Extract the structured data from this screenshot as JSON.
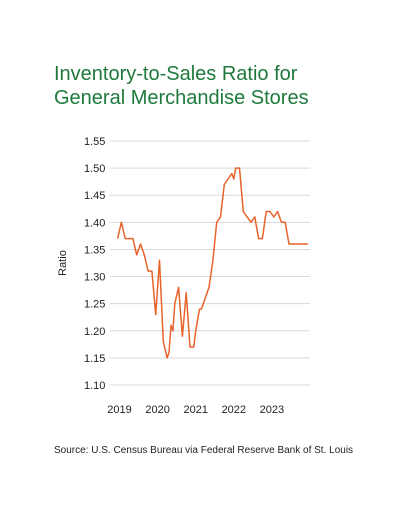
{
  "chart_data": {
    "type": "line",
    "title_lines": [
      "Inventory-to-Sales Ratio for",
      "General Merchandise Stores"
    ],
    "ylabel": "Ratio",
    "xlabel": "",
    "ylim": [
      1.1,
      1.55
    ],
    "yticks": [
      "1.55",
      "1.50",
      "1.45",
      "1.40",
      "1.35",
      "1.30",
      "1.25",
      "1.20",
      "1.15",
      "1.10"
    ],
    "xlim": [
      2018.75,
      2024.0
    ],
    "xticks": [
      "2019",
      "2020",
      "2021",
      "2022",
      "2023"
    ],
    "grid": "horizontal",
    "series": [
      {
        "color": "#e8622c",
        "x": [
          2018.95,
          2019.05,
          2019.15,
          2019.25,
          2019.35,
          2019.45,
          2019.55,
          2019.65,
          2019.75,
          2019.85,
          2019.95,
          2020.05,
          2020.15,
          2020.25,
          2020.3,
          2020.35,
          2020.4,
          2020.45,
          2020.55,
          2020.65,
          2020.75,
          2020.85,
          2020.95,
          2021.0,
          2021.05,
          2021.1,
          2021.15,
          2021.25,
          2021.35,
          2021.45,
          2021.55,
          2021.65,
          2021.75,
          2021.85,
          2021.95,
          2022.0,
          2022.05,
          2022.15,
          2022.25,
          2022.35,
          2022.45,
          2022.55,
          2022.65,
          2022.75,
          2022.85,
          2022.95,
          2023.05,
          2023.15,
          2023.25,
          2023.35,
          2023.45,
          2023.55,
          2023.65,
          2023.75,
          2023.85,
          2023.95
        ],
        "values": [
          1.37,
          1.4,
          1.37,
          1.37,
          1.37,
          1.34,
          1.36,
          1.34,
          1.31,
          1.31,
          1.23,
          1.33,
          1.18,
          1.15,
          1.16,
          1.21,
          1.2,
          1.25,
          1.28,
          1.19,
          1.27,
          1.17,
          1.17,
          1.2,
          1.22,
          1.24,
          1.24,
          1.26,
          1.28,
          1.33,
          1.4,
          1.41,
          1.47,
          1.48,
          1.49,
          1.48,
          1.5,
          1.5,
          1.42,
          1.41,
          1.4,
          1.41,
          1.37,
          1.37,
          1.42,
          1.42,
          1.41,
          1.42,
          1.4,
          1.4,
          1.36,
          1.36,
          1.36,
          1.36,
          1.36,
          1.36
        ]
      }
    ]
  },
  "source": "Source: U.S. Census Bureau via Federal Reserve Bank of St. Louis"
}
